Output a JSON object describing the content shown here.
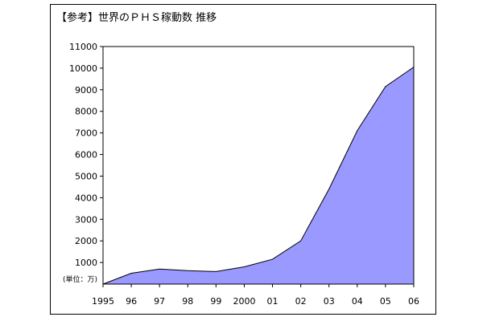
{
  "chart_data": {
    "type": "area",
    "title": "【参考】世界のＰＨＳ稼動数 推移",
    "unit_label": "(単位：万)",
    "x": [
      "1995",
      "96",
      "97",
      "98",
      "99",
      "2000",
      "01",
      "02",
      "03",
      "04",
      "05",
      "06"
    ],
    "values": [
      0,
      500,
      700,
      620,
      580,
      800,
      1150,
      2000,
      4400,
      7100,
      9150,
      10050
    ],
    "ylim": [
      0,
      11000
    ],
    "y_ticks": [
      1000,
      2000,
      3000,
      4000,
      5000,
      6000,
      7000,
      8000,
      9000,
      10000,
      11000
    ],
    "fill_color": "#9999ff",
    "grid": false,
    "legend": "none"
  }
}
